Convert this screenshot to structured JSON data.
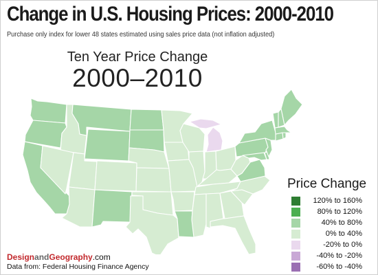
{
  "title": "Change in U.S. Housing Prices: 2000-2010",
  "subtitle": "Purchase only index for lower 48 states estimated using sales price data (not inflation adjusted)",
  "map_heading": "Ten Year Price Change",
  "map_years": "2000–2010",
  "legend": {
    "title": "Price Change",
    "items": [
      {
        "label": "120% to 160%",
        "color": "#2e7d32"
      },
      {
        "label": "80% to 120%",
        "color": "#4caf50"
      },
      {
        "label": "40% to 80%",
        "color": "#a5d6a7"
      },
      {
        "label": "0% to 40%",
        "color": "#d6ecd2"
      },
      {
        "label": "-20% to 0%",
        "color": "#ead9ee"
      },
      {
        "label": "-40% to -20%",
        "color": "#c9a8d6"
      },
      {
        "label": "-60% to -40%",
        "color": "#9b6fb3"
      }
    ]
  },
  "brand": {
    "part1": "Design",
    "part2": "and",
    "part3": "Geography",
    "part4": ".com"
  },
  "source": "Data from:  Federal Housing Finance Agency",
  "map_regions": [
    {
      "name": "Washington",
      "category": "40% to 80%"
    },
    {
      "name": "Oregon",
      "category": "40% to 80%"
    },
    {
      "name": "California",
      "category": "40% to 80%"
    },
    {
      "name": "Idaho",
      "category": "0% to 40%"
    },
    {
      "name": "Nevada",
      "category": "0% to 40%"
    },
    {
      "name": "Montana",
      "category": "40% to 80%"
    },
    {
      "name": "Wyoming",
      "category": "40% to 80%"
    },
    {
      "name": "Utah",
      "category": "0% to 40%"
    },
    {
      "name": "Arizona",
      "category": "0% to 40%"
    },
    {
      "name": "Colorado",
      "category": "0% to 40%"
    },
    {
      "name": "New Mexico",
      "category": "40% to 80%"
    },
    {
      "name": "North Dakota",
      "category": "40% to 80%"
    },
    {
      "name": "South Dakota",
      "category": "40% to 80%"
    },
    {
      "name": "Nebraska",
      "category": "0% to 40%"
    },
    {
      "name": "Kansas",
      "category": "0% to 40%"
    },
    {
      "name": "Oklahoma",
      "category": "0% to 40%"
    },
    {
      "name": "Texas",
      "category": "0% to 40%"
    },
    {
      "name": "Minnesota",
      "category": "0% to 40%"
    },
    {
      "name": "Iowa",
      "category": "0% to 40%"
    },
    {
      "name": "Missouri",
      "category": "0% to 40%"
    },
    {
      "name": "Arkansas",
      "category": "0% to 40%"
    },
    {
      "name": "Louisiana",
      "category": "40% to 80%"
    },
    {
      "name": "Wisconsin",
      "category": "0% to 40%"
    },
    {
      "name": "Illinois",
      "category": "0% to 40%"
    },
    {
      "name": "Michigan",
      "category": "-20% to 0%"
    },
    {
      "name": "Indiana",
      "category": "0% to 40%"
    },
    {
      "name": "Ohio",
      "category": "0% to 40%"
    },
    {
      "name": "Kentucky",
      "category": "0% to 40%"
    },
    {
      "name": "Tennessee",
      "category": "0% to 40%"
    },
    {
      "name": "Mississippi",
      "category": "0% to 40%"
    },
    {
      "name": "Alabama",
      "category": "0% to 40%"
    },
    {
      "name": "Georgia",
      "category": "0% to 40%"
    },
    {
      "name": "Florida",
      "category": "0% to 40%"
    },
    {
      "name": "South Carolina",
      "category": "0% to 40%"
    },
    {
      "name": "North Carolina",
      "category": "0% to 40%"
    },
    {
      "name": "Virginia",
      "category": "40% to 80%"
    },
    {
      "name": "West Virginia",
      "category": "0% to 40%"
    },
    {
      "name": "Pennsylvania",
      "category": "40% to 80%"
    },
    {
      "name": "New York",
      "category": "40% to 80%"
    },
    {
      "name": "Maryland",
      "category": "40% to 80%"
    },
    {
      "name": "Delaware",
      "category": "40% to 80%"
    },
    {
      "name": "New Jersey",
      "category": "40% to 80%"
    },
    {
      "name": "Connecticut",
      "category": "40% to 80%"
    },
    {
      "name": "Rhode Island",
      "category": "40% to 80%"
    },
    {
      "name": "Massachusetts",
      "category": "40% to 80%"
    },
    {
      "name": "Vermont",
      "category": "40% to 80%"
    },
    {
      "name": "New Hampshire",
      "category": "40% to 80%"
    },
    {
      "name": "Maine",
      "category": "40% to 80%"
    }
  ]
}
